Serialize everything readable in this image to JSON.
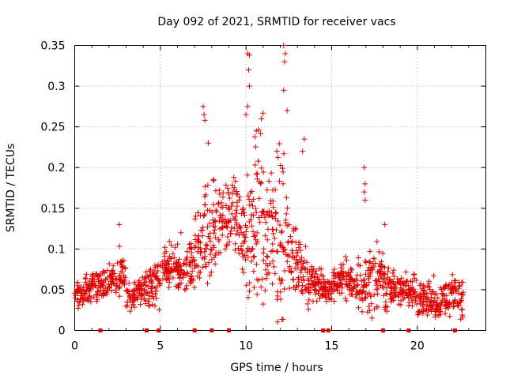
{
  "chart_data": {
    "type": "scatter",
    "title": "Day 092 of 2021, SRMTID for receiver vacs",
    "xlabel": "GPS time / hours",
    "ylabel": "SRMTID / TECUs",
    "xlim": [
      0,
      24
    ],
    "ylim": [
      0,
      0.35
    ],
    "x_ticks": [
      0,
      5,
      10,
      15,
      20
    ],
    "x_tick_labels": [
      "0",
      "5",
      "10",
      "15",
      "20"
    ],
    "y_ticks": [
      0,
      0.05,
      0.1,
      0.15,
      0.2,
      0.25,
      0.3,
      0.35
    ],
    "y_tick_labels": [
      "0",
      "0.05",
      "0.1",
      "0.15",
      "0.2",
      "0.25",
      "0.3",
      "0.35"
    ],
    "grid": true,
    "marker": "+",
    "color": "#e00000",
    "zero_markers_x": [
      1.5,
      4.2,
      4.9,
      7.0,
      8.0,
      9.0,
      14.5,
      14.8,
      18.0,
      19.5,
      22.2
    ],
    "series_profile": {
      "x": [
        0.0,
        0.5,
        1.0,
        1.5,
        2.0,
        2.5,
        3.0,
        3.5,
        4.0,
        4.5,
        5.0,
        5.5,
        6.0,
        6.5,
        7.0,
        7.5,
        8.0,
        8.5,
        9.0,
        9.5,
        10.0,
        10.5,
        11.0,
        11.5,
        12.0,
        12.5,
        13.0,
        13.5,
        14.0,
        14.5,
        15.0,
        15.5,
        16.0,
        16.5,
        17.0,
        17.5,
        18.0,
        18.5,
        19.0,
        19.5,
        20.0,
        20.5,
        21.0,
        21.5,
        22.0,
        22.5
      ],
      "y": [
        0.045,
        0.05,
        0.055,
        0.055,
        0.06,
        0.07,
        0.04,
        0.05,
        0.055,
        0.06,
        0.075,
        0.08,
        0.07,
        0.08,
        0.1,
        0.12,
        0.13,
        0.14,
        0.145,
        0.12,
        0.13,
        0.15,
        0.12,
        0.11,
        0.12,
        0.09,
        0.07,
        0.06,
        0.055,
        0.05,
        0.06,
        0.065,
        0.055,
        0.06,
        0.06,
        0.065,
        0.055,
        0.05,
        0.05,
        0.045,
        0.04,
        0.04,
        0.035,
        0.04,
        0.045,
        0.04
      ],
      "spread": [
        0.012,
        0.015,
        0.018,
        0.015,
        0.02,
        0.025,
        0.015,
        0.015,
        0.02,
        0.025,
        0.025,
        0.03,
        0.02,
        0.03,
        0.04,
        0.06,
        0.05,
        0.04,
        0.04,
        0.05,
        0.08,
        0.09,
        0.07,
        0.09,
        0.1,
        0.05,
        0.04,
        0.03,
        0.02,
        0.015,
        0.018,
        0.02,
        0.02,
        0.03,
        0.04,
        0.03,
        0.025,
        0.02,
        0.02,
        0.02,
        0.02,
        0.02,
        0.02,
        0.02,
        0.02,
        0.02
      ]
    },
    "peak_points": [
      {
        "x": 7.5,
        "y": 0.275
      },
      {
        "x": 7.55,
        "y": 0.265
      },
      {
        "x": 7.6,
        "y": 0.258
      },
      {
        "x": 7.8,
        "y": 0.23
      },
      {
        "x": 10.1,
        "y": 0.34
      },
      {
        "x": 10.2,
        "y": 0.338
      },
      {
        "x": 10.15,
        "y": 0.32
      },
      {
        "x": 10.2,
        "y": 0.3
      },
      {
        "x": 10.1,
        "y": 0.275
      },
      {
        "x": 10.0,
        "y": 0.265
      },
      {
        "x": 10.6,
        "y": 0.245
      },
      {
        "x": 10.9,
        "y": 0.26
      },
      {
        "x": 12.2,
        "y": 0.35
      },
      {
        "x": 12.3,
        "y": 0.34
      },
      {
        "x": 12.25,
        "y": 0.33
      },
      {
        "x": 12.2,
        "y": 0.295
      },
      {
        "x": 12.4,
        "y": 0.27
      },
      {
        "x": 11.8,
        "y": 0.22
      },
      {
        "x": 13.4,
        "y": 0.235
      },
      {
        "x": 13.3,
        "y": 0.22
      },
      {
        "x": 16.9,
        "y": 0.2
      },
      {
        "x": 16.95,
        "y": 0.18
      },
      {
        "x": 16.9,
        "y": 0.17
      },
      {
        "x": 16.95,
        "y": 0.16
      },
      {
        "x": 2.6,
        "y": 0.13
      },
      {
        "x": 18.1,
        "y": 0.13
      },
      {
        "x": 6.2,
        "y": 0.12
      }
    ]
  }
}
